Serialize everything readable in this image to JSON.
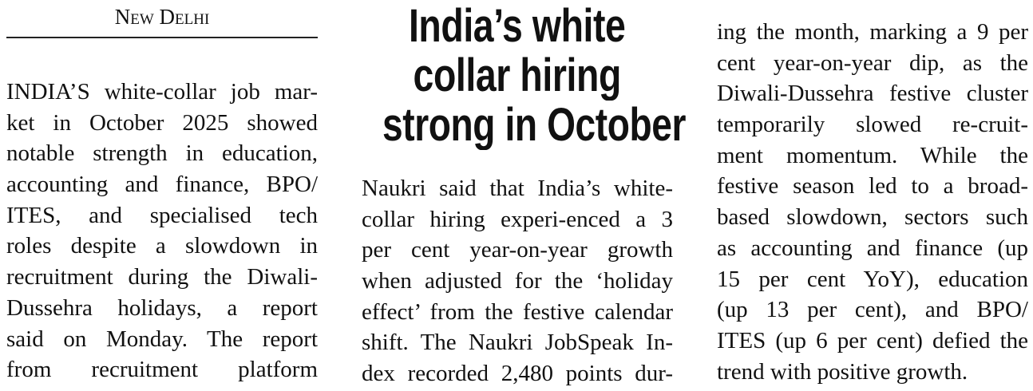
{
  "dateline": "New Delhi",
  "headline": [
    "India’s white",
    "collar hiring",
    "strong in October"
  ],
  "column1": [
    "INDIA’S white-collar job mar-",
    "ket in October 2025 showed",
    "notable strength in education,",
    "accounting and finance, BPO/",
    "ITES, and specialised tech",
    "roles despite a slowdown in",
    "recruitment during the Diwali-",
    "Dussehra holidays, a report",
    "said on Monday.  The report",
    "from recruitment platform"
  ],
  "column2": [
    "Naukri said that India’s white-",
    "collar hiring experi-enced a 3",
    "per cent year-on-year growth",
    "when adjusted for the ‘holiday",
    "effect’ from the festive calendar",
    "shift. The Naukri JobSpeak In-",
    "dex recorded 2,480 points dur-"
  ],
  "column3": [
    "ing the month, marking a 9 per",
    "cent year-on-year dip, as the",
    "Diwali-Dussehra festive cluster",
    "temporarily slowed re-cruit-",
    "ment momentum. While the",
    "festive season led to a broad-",
    "based slowdown, sectors such",
    "as accounting and finance (up",
    "15 per cent YoY), education",
    "(up 13 per cent), and BPO/",
    "ITES (up 6 per cent) defied the",
    "trend with positive growth."
  ]
}
